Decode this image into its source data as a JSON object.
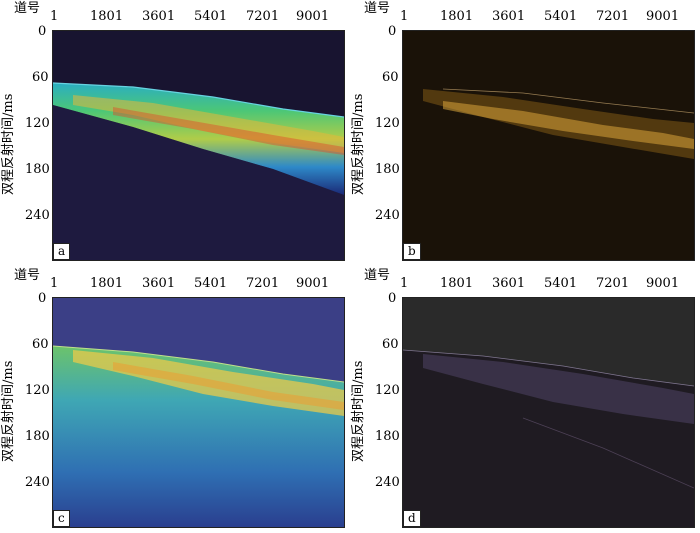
{
  "panels": [
    {
      "id": "a",
      "tag": "a",
      "track_label": "道号",
      "time_label": "双程反射时间/ms",
      "x_ticks": [
        "1",
        "1801",
        "3601",
        "5401",
        "7201",
        "9001"
      ],
      "y_ticks": [
        "0",
        "60",
        "120",
        "180",
        "240"
      ],
      "colormap": "jet-on-navy"
    },
    {
      "id": "b",
      "tag": "b",
      "track_label": "道号",
      "time_label": "双程反射时间/ms",
      "x_ticks": [
        "1",
        "1801",
        "3601",
        "5401",
        "7201",
        "9001"
      ],
      "y_ticks": [
        "0",
        "60",
        "120",
        "180",
        "240"
      ],
      "colormap": "gold-on-black"
    },
    {
      "id": "c",
      "tag": "c",
      "track_label": "道号",
      "time_label": "双程反射时间/ms",
      "x_ticks": [
        "1",
        "1801",
        "3601",
        "5401",
        "7201",
        "9001"
      ],
      "y_ticks": [
        "0",
        "60",
        "120",
        "180",
        "240"
      ],
      "colormap": "viridis-like"
    },
    {
      "id": "d",
      "tag": "d",
      "track_label": "道号",
      "time_label": "双程反射时间/ms",
      "x_ticks": [
        "1",
        "1801",
        "3601",
        "5401",
        "7201",
        "9001"
      ],
      "y_ticks": [
        "0",
        "60",
        "120",
        "180",
        "240"
      ],
      "colormap": "dark-gray-magenta"
    }
  ],
  "colors": {
    "frame": "#222222",
    "background": "#ffffff"
  }
}
